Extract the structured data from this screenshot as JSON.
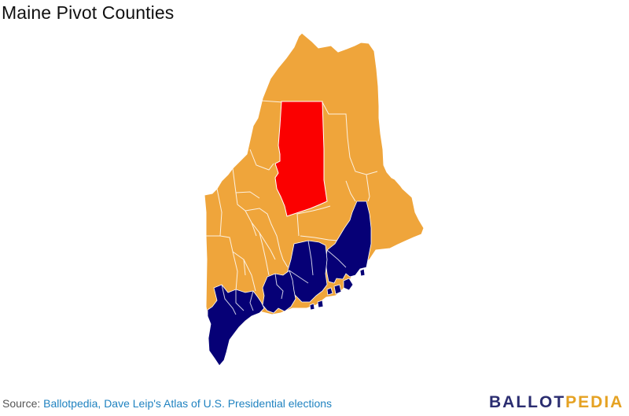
{
  "title": "Maine Pivot Counties",
  "colors": {
    "orange": "#EFA53B",
    "red": "#FB0000",
    "navy": "#060076",
    "border": "#ffffff",
    "link": "#1f82c0",
    "logo_ballot": "#2B2D70",
    "logo_pedia": "#E5A223"
  },
  "source": {
    "prefix": "Source:",
    "link_text": "Ballotpedia, Dave Leip's Atlas of U.S. Presidential elections"
  },
  "logo": {
    "part1": "BALLOT",
    "part2": "PEDIA"
  }
}
